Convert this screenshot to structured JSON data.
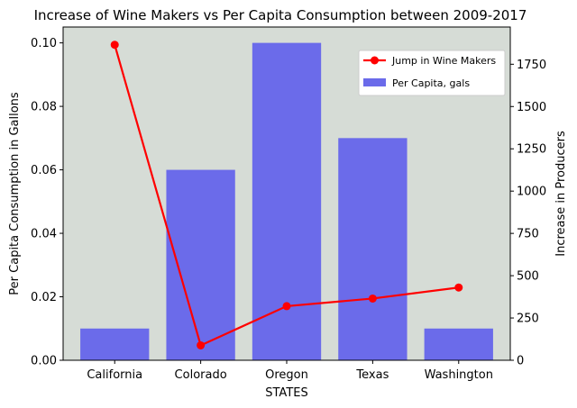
{
  "chart_data": {
    "type": "bar+line",
    "title": "Increase of Wine Makers vs Per Capita Consumption between 2009-2017",
    "xlabel": "STATES",
    "ylabel_left": "Per Capita Consumption in Gallons",
    "ylabel_right": "Increase in Producers",
    "categories": [
      "California",
      "Colorado",
      "Oregon",
      "Texas",
      "Washington"
    ],
    "bar_series": {
      "name": "Per Capita, gals",
      "values": [
        0.01,
        0.06,
        0.1,
        0.07,
        0.01
      ],
      "color": "#6b6bea"
    },
    "line_series": {
      "name": "Jump in Wine Makers",
      "values": [
        1865,
        88,
        320,
        365,
        430
      ],
      "color": "#ff0000"
    },
    "ylim_left": [
      0,
      0.105
    ],
    "ylim_right": [
      0,
      1970
    ],
    "yticks_left": [
      "0.00",
      "0.02",
      "0.04",
      "0.06",
      "0.08",
      "0.10"
    ],
    "yticks_right": [
      "0",
      "250",
      "500",
      "750",
      "1000",
      "1250",
      "1500",
      "1750"
    ],
    "plot_background": "#d6dcd6",
    "grid": false,
    "legend_position": "top-right"
  }
}
